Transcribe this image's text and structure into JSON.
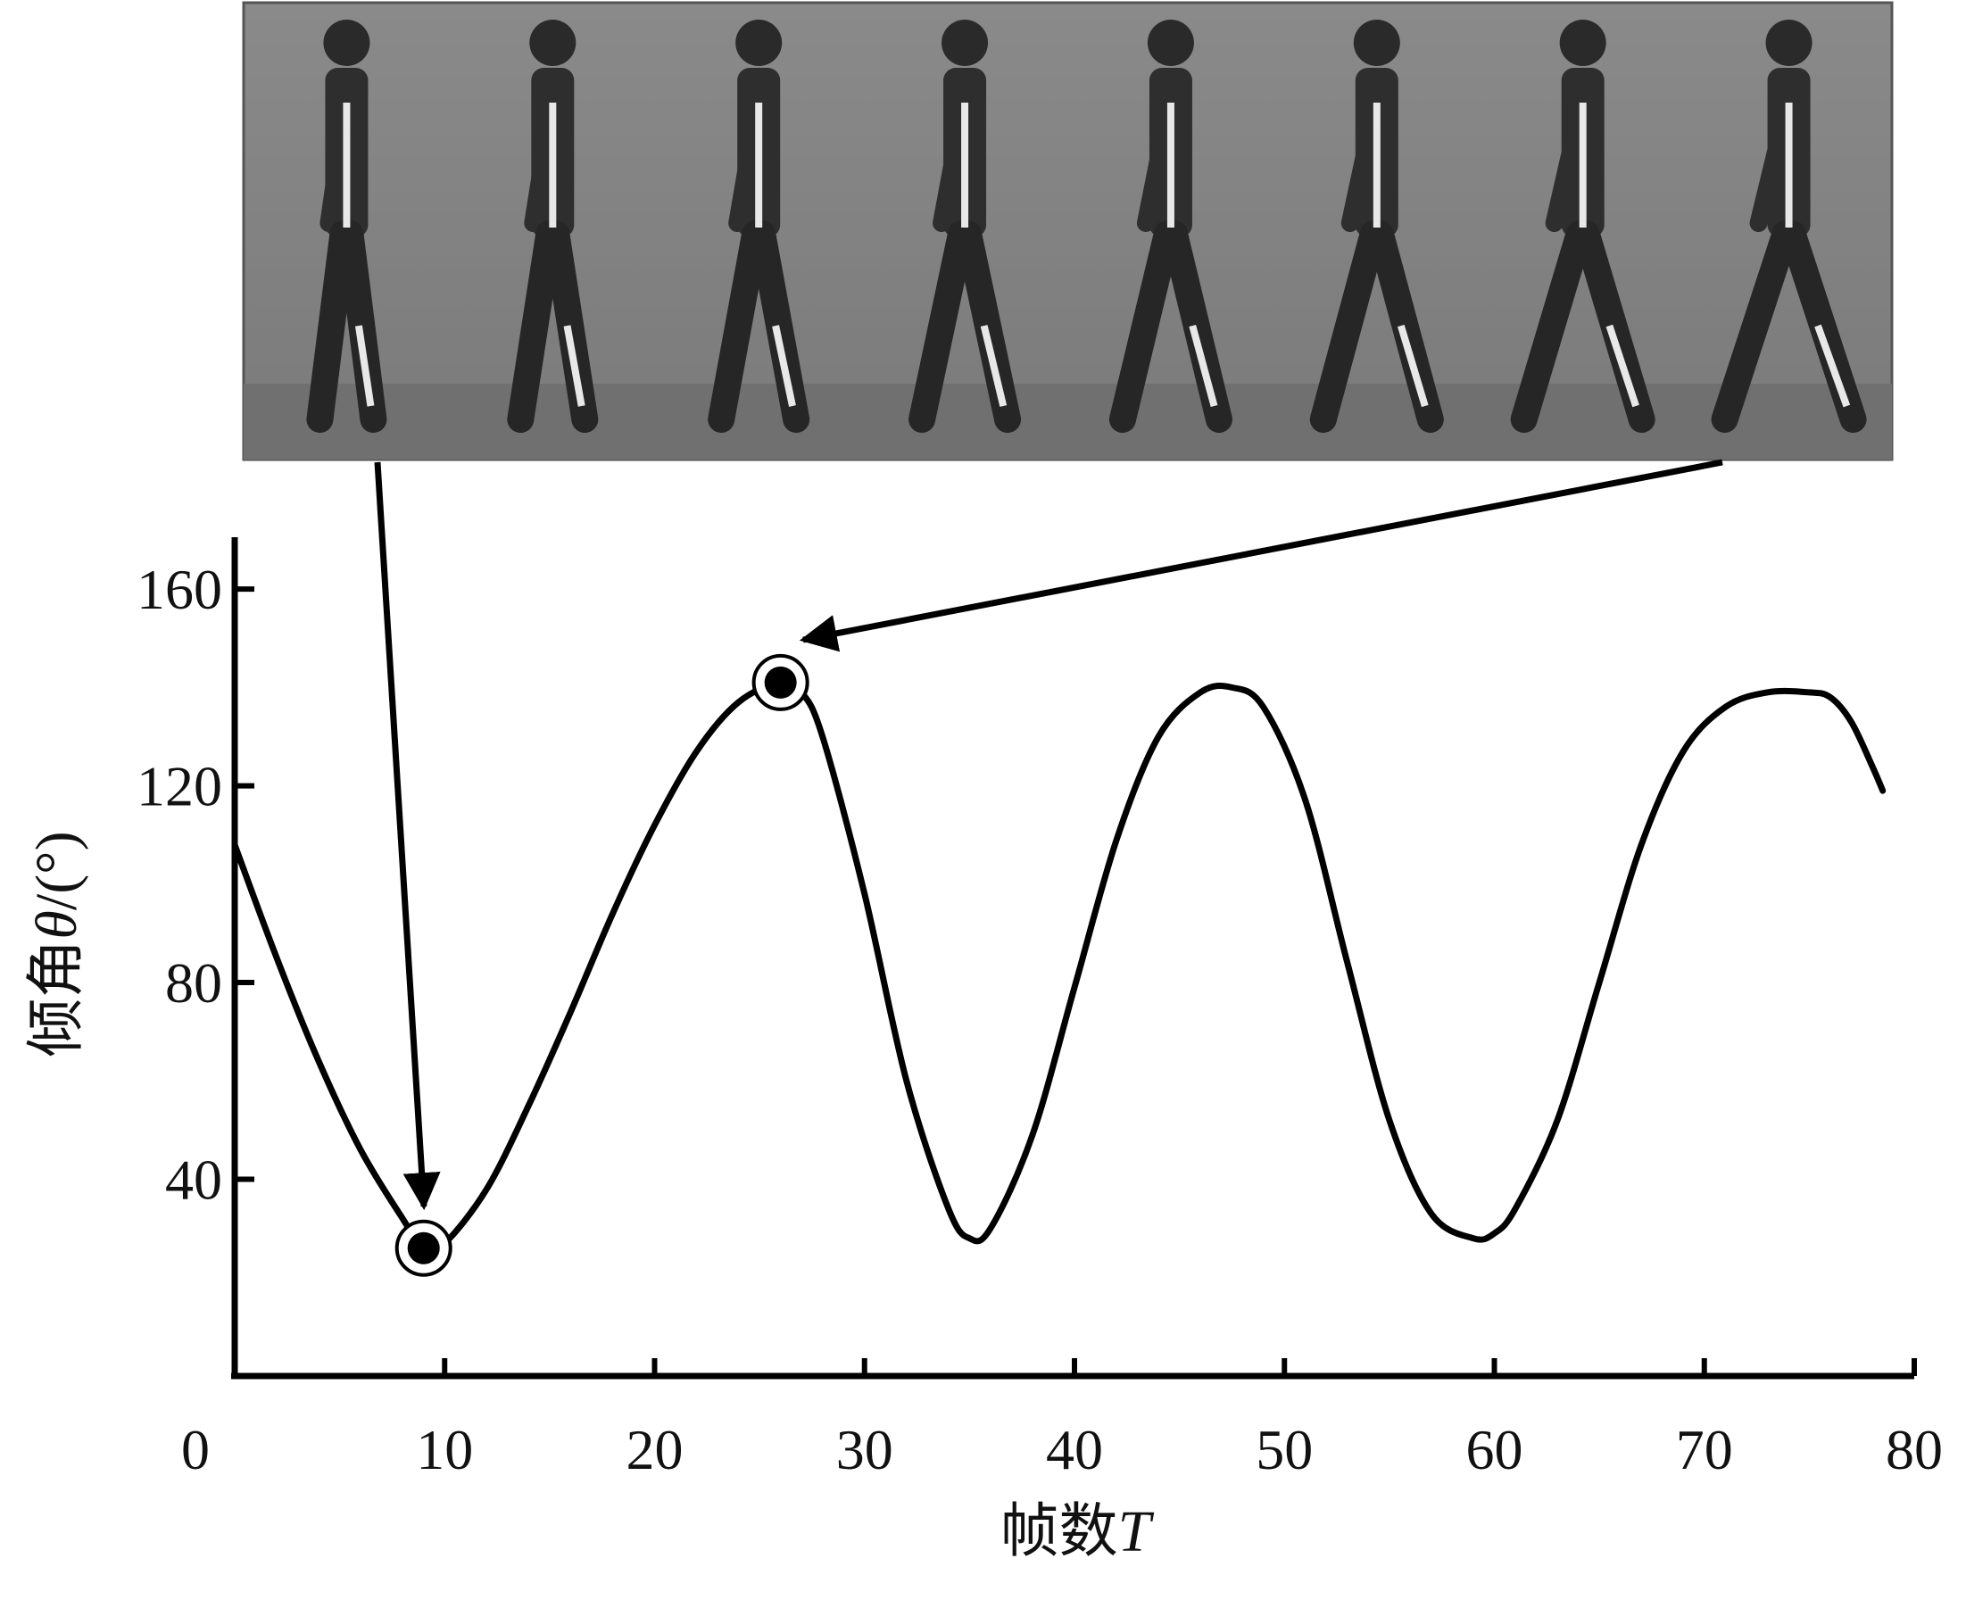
{
  "chart_data": {
    "type": "line",
    "xlabel_text": "帧数",
    "xlabel_var": "T",
    "ylabel_text": "倾角",
    "ylabel_var": "θ",
    "ylabel_unit": "/(°)",
    "xlim": [
      0,
      80
    ],
    "ylim": [
      0,
      170
    ],
    "x_ticks": [
      0,
      10,
      20,
      30,
      40,
      50,
      60,
      70,
      80
    ],
    "y_ticks": [
      40,
      80,
      120,
      160
    ],
    "grid": false,
    "series": [
      {
        "x": [
          0,
          2,
          4,
          6,
          8,
          9,
          10,
          12,
          14,
          16,
          18,
          20,
          22,
          24,
          26,
          27,
          28,
          30,
          32,
          34,
          35,
          36,
          38,
          40,
          42,
          44,
          46,
          47.5,
          49,
          51,
          53,
          55,
          57,
          59,
          60,
          61,
          63,
          65,
          67,
          69,
          71,
          73,
          75,
          76,
          77,
          78,
          78.5
        ],
        "y": [
          108,
          85,
          64,
          46,
          32,
          26,
          27,
          38,
          55,
          74,
          94,
          112,
          127,
          137,
          141,
          139,
          130,
          98,
          60,
          34,
          28,
          30,
          49,
          79,
          109,
          130,
          139,
          140,
          136,
          117,
          84,
          52,
          33,
          28,
          29,
          34,
          52,
          80,
          108,
          127,
          136,
          139,
          139,
          138,
          133,
          124,
          119
        ]
      }
    ],
    "highlighted_points": [
      {
        "x": 9,
        "y": 26
      },
      {
        "x": 26,
        "y": 141
      }
    ]
  },
  "photo_strip": {
    "frame_count": 8
  }
}
